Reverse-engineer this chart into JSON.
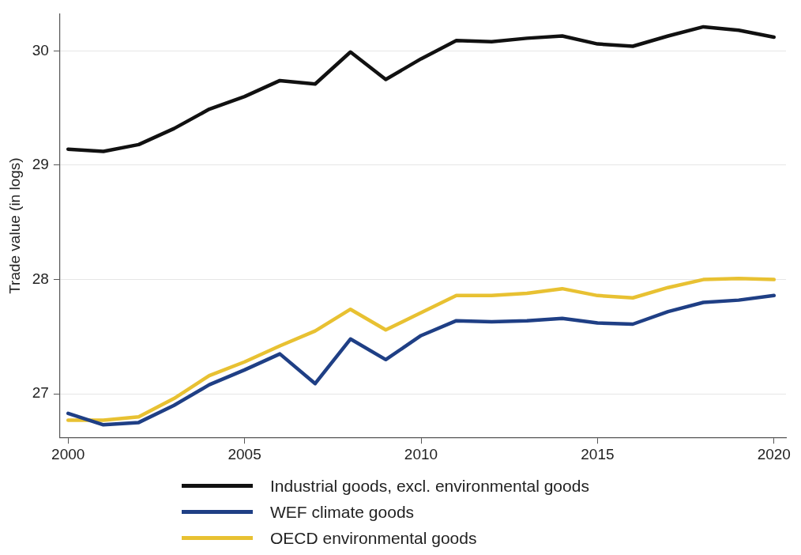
{
  "chart_data": {
    "type": "line",
    "ylabel": "Trade value (in logs)",
    "x": [
      2000,
      2001,
      2002,
      2003,
      2004,
      2005,
      2006,
      2007,
      2008,
      2009,
      2010,
      2011,
      2012,
      2013,
      2014,
      2015,
      2016,
      2017,
      2018,
      2019,
      2020
    ],
    "series": [
      {
        "name": "Industrial goods, excl. environmental goods",
        "color": "#111111",
        "values": [
          29.14,
          29.12,
          29.18,
          29.32,
          29.49,
          29.6,
          29.74,
          29.71,
          29.99,
          29.75,
          29.93,
          30.09,
          30.08,
          30.11,
          30.13,
          30.06,
          30.04,
          30.13,
          30.21,
          30.18,
          30.12
        ]
      },
      {
        "name": "WEF climate goods",
        "color": "#1f3f85",
        "values": [
          26.83,
          26.73,
          26.75,
          26.9,
          27.08,
          27.21,
          27.35,
          27.09,
          27.48,
          27.3,
          27.51,
          27.64,
          27.63,
          27.64,
          27.66,
          27.62,
          27.61,
          27.72,
          27.8,
          27.82,
          27.86
        ]
      },
      {
        "name": "OECD environmental goods",
        "color": "#e8c132",
        "values": [
          26.77,
          26.77,
          26.8,
          26.96,
          27.16,
          27.28,
          27.42,
          27.55,
          27.74,
          27.56,
          27.71,
          27.86,
          27.86,
          27.88,
          27.92,
          27.86,
          27.84,
          27.93,
          28.0,
          28.01,
          28.0
        ]
      }
    ],
    "xlim": [
      1999.77,
      2020.34
    ],
    "xticks": [
      2000,
      2005,
      2010,
      2015,
      2020
    ],
    "ylim": [
      26.62,
      30.32
    ],
    "yticks": [
      27,
      28,
      29,
      30
    ],
    "grid": "y",
    "legend": "bottom",
    "marker": "none",
    "line_style": "solid"
  }
}
